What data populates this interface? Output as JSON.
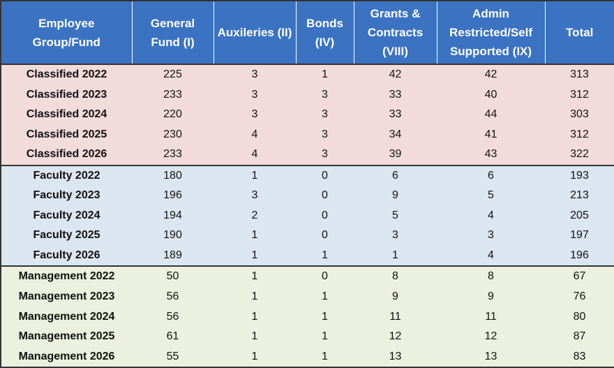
{
  "table": {
    "header_color": "#3b73c2",
    "header": [
      "Employee Group/Fund",
      "General Fund (I)",
      "Auxileries (II)",
      "Bonds (IV)",
      "Grants & Contracts (VIII)",
      "Admin Restricted/Self Supported (IX)",
      "Total"
    ],
    "groups": [
      {
        "color": "#f2dcdb",
        "rows": [
          [
            "Classified 2022",
            225,
            3,
            1,
            42,
            42,
            313
          ],
          [
            "Classified 2023",
            233,
            3,
            3,
            33,
            40,
            312
          ],
          [
            "Classified 2024",
            220,
            3,
            3,
            33,
            44,
            303
          ],
          [
            "Classified 2025",
            230,
            4,
            3,
            34,
            41,
            312
          ],
          [
            "Classified 2026",
            233,
            4,
            3,
            39,
            43,
            322
          ]
        ]
      },
      {
        "color": "#dce6f1",
        "rows": [
          [
            "Faculty 2022",
            180,
            1,
            0,
            6,
            6,
            193
          ],
          [
            "Faculty 2023",
            196,
            3,
            0,
            9,
            5,
            213
          ],
          [
            "Faculty 2024",
            194,
            2,
            0,
            5,
            4,
            205
          ],
          [
            "Faculty 2025",
            190,
            1,
            0,
            3,
            3,
            197
          ],
          [
            "Faculty 2026",
            189,
            1,
            1,
            1,
            4,
            196
          ]
        ]
      },
      {
        "color": "#ebf1de",
        "rows": [
          [
            "Management 2022",
            50,
            1,
            0,
            8,
            8,
            67
          ],
          [
            "Management 2023",
            56,
            1,
            1,
            9,
            9,
            76
          ],
          [
            "Management 2024",
            56,
            1,
            1,
            11,
            11,
            80
          ],
          [
            "Management 2025",
            61,
            1,
            1,
            12,
            12,
            87
          ],
          [
            "Management 2026",
            55,
            1,
            1,
            13,
            13,
            83
          ]
        ]
      }
    ]
  }
}
